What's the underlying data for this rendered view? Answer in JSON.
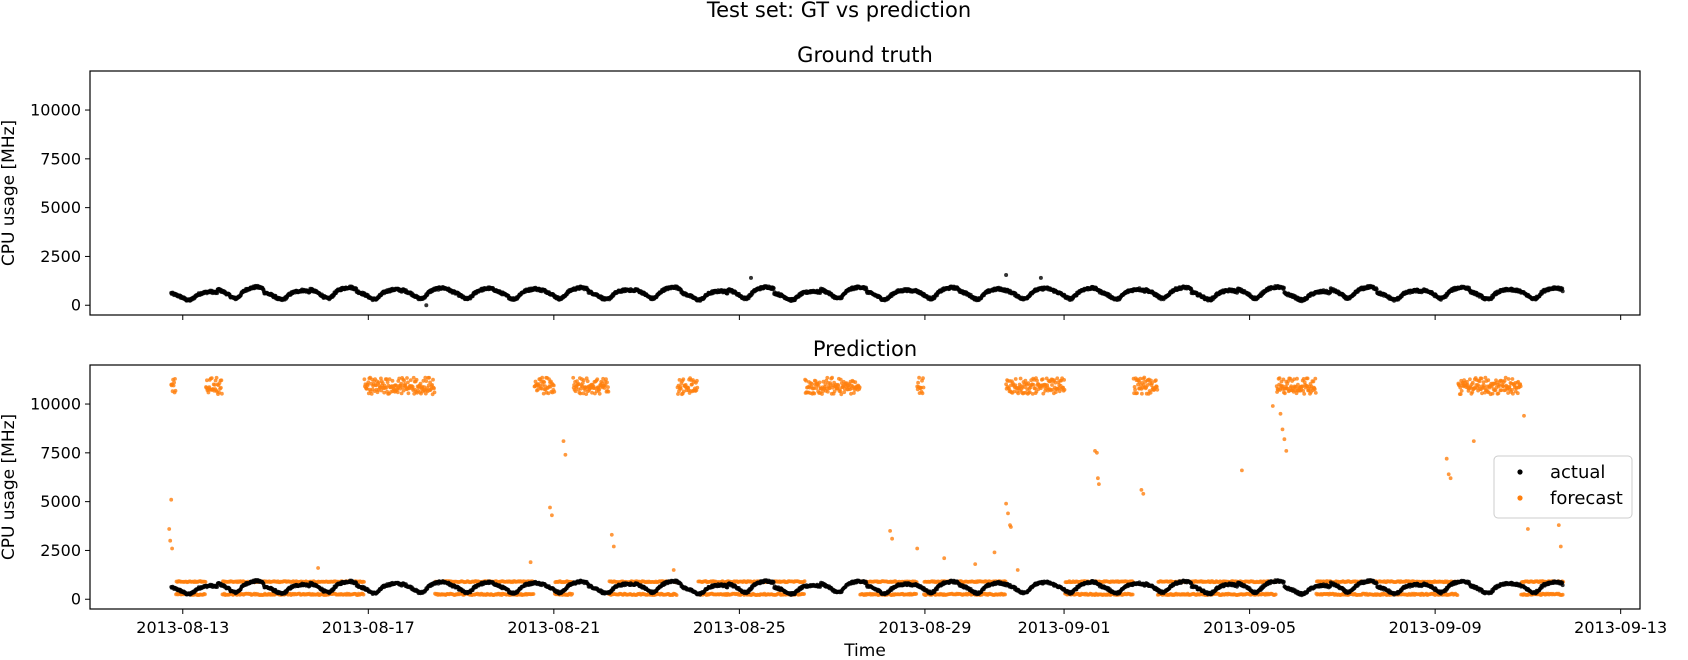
{
  "figure": {
    "suptitle": "Test set: GT vs prediction",
    "xlabel": "Time"
  },
  "chart_data": [
    {
      "type": "scatter",
      "title": "Ground truth",
      "ylabel": "CPU usage [MHz]",
      "xlim": [
        "2013-08-11T00:00",
        "2013-09-13T10:00"
      ],
      "ylim": [
        -500,
        12000
      ],
      "yticks": [
        0,
        2500,
        5000,
        7500,
        10000
      ],
      "xticks": [
        "2013-08-13",
        "2013-08-17",
        "2013-08-21",
        "2013-08-25",
        "2013-08-29",
        "2013-09-01",
        "2013-09-05",
        "2013-09-09",
        "2013-09-13"
      ],
      "series": [
        {
          "name": "actual",
          "color": "#000000",
          "x_start": "2013-08-12T18:00",
          "x_end": "2013-09-11T18:00",
          "step_hours": 0.25,
          "values_description": "daily cycle between ~300 and ~1000 MHz",
          "daily_profile": [
            450,
            380,
            330,
            300,
            320,
            380,
            480,
            580,
            650,
            700,
            740,
            760,
            780,
            800,
            820,
            810,
            790,
            760,
            720,
            680,
            640,
            600,
            560,
            500
          ],
          "outliers": [
            {
              "x": "2013-08-25T06:00",
              "y": 1400
            },
            {
              "x": "2013-08-30T18:00",
              "y": 1550
            },
            {
              "x": "2013-08-31T12:00",
              "y": 1400
            },
            {
              "x": "2013-08-18T06:00",
              "y": 0
            }
          ]
        }
      ]
    },
    {
      "type": "scatter",
      "title": "Prediction",
      "ylabel": "CPU usage [MHz]",
      "xlim": [
        "2013-08-11T00:00",
        "2013-09-13T10:00"
      ],
      "ylim": [
        -500,
        12000
      ],
      "yticks": [
        0,
        2500,
        5000,
        7500,
        10000
      ],
      "xticks": [
        "2013-08-13",
        "2013-08-17",
        "2013-08-21",
        "2013-08-25",
        "2013-08-29",
        "2013-09-01",
        "2013-09-05",
        "2013-09-09",
        "2013-09-13"
      ],
      "legend": {
        "position": "center-right",
        "entries": [
          "actual",
          "forecast"
        ]
      },
      "series": [
        {
          "name": "actual",
          "color": "#000000"
        },
        {
          "name": "forecast",
          "color": "#ff7f0e",
          "low_levels": [
            250,
            900
          ],
          "high_level": 11000,
          "high_segments": [
            [
              "2013-08-12T18:00",
              "2013-08-12T20:00"
            ],
            [
              "2013-08-13T12:00",
              "2013-08-13T20:00"
            ],
            [
              "2013-08-16T22:00",
              "2013-08-18T10:00"
            ],
            [
              "2013-08-20T14:00",
              "2013-08-21T00:00"
            ],
            [
              "2013-08-21T10:00",
              "2013-08-22T04:00"
            ],
            [
              "2013-08-23T16:00",
              "2013-08-24T02:00"
            ],
            [
              "2013-08-26T10:00",
              "2013-08-27T14:00"
            ],
            [
              "2013-08-28T20:00",
              "2013-08-28T23:00"
            ],
            [
              "2013-08-30T18:00",
              "2013-09-01T00:00"
            ],
            [
              "2013-09-02T12:00",
              "2013-09-03T00:00"
            ],
            [
              "2013-09-05T14:00",
              "2013-09-06T10:00"
            ],
            [
              "2013-09-09T12:00",
              "2013-09-10T20:00"
            ]
          ],
          "spikes": [
            {
              "x": "2013-08-12T18:00",
              "y": 5100
            },
            {
              "x": "2013-08-12T17:00",
              "y": 3600
            },
            {
              "x": "2013-08-12T17:30",
              "y": 3000
            },
            {
              "x": "2013-08-12T18:30",
              "y": 2600
            },
            {
              "x": "2013-08-21T05:00",
              "y": 8100
            },
            {
              "x": "2013-08-21T06:00",
              "y": 7400
            },
            {
              "x": "2013-08-20T22:00",
              "y": 4700
            },
            {
              "x": "2013-08-20T23:00",
              "y": 4300
            },
            {
              "x": "2013-08-22T06:00",
              "y": 3300
            },
            {
              "x": "2013-08-22T07:00",
              "y": 2700
            },
            {
              "x": "2013-08-28T06:00",
              "y": 3500
            },
            {
              "x": "2013-08-28T07:00",
              "y": 3100
            },
            {
              "x": "2013-08-28T20:00",
              "y": 2600
            },
            {
              "x": "2013-08-29T10:00",
              "y": 2100
            },
            {
              "x": "2013-08-30T02:00",
              "y": 1800
            },
            {
              "x": "2013-08-30T12:00",
              "y": 2400
            },
            {
              "x": "2013-08-30T18:00",
              "y": 4900
            },
            {
              "x": "2013-08-30T19:00",
              "y": 4400
            },
            {
              "x": "2013-08-30T20:00",
              "y": 3800
            },
            {
              "x": "2013-08-30T20:30",
              "y": 3700
            },
            {
              "x": "2013-08-31T00:00",
              "y": 1500
            },
            {
              "x": "2013-09-01T16:00",
              "y": 7600
            },
            {
              "x": "2013-09-01T17:00",
              "y": 7500
            },
            {
              "x": "2013-09-01T17:30",
              "y": 6200
            },
            {
              "x": "2013-09-01T18:00",
              "y": 5900
            },
            {
              "x": "2013-09-02T16:00",
              "y": 5600
            },
            {
              "x": "2013-09-02T17:00",
              "y": 5400
            },
            {
              "x": "2013-09-04T20:00",
              "y": 6600
            },
            {
              "x": "2013-09-05T16:00",
              "y": 9500
            },
            {
              "x": "2013-09-05T17:00",
              "y": 8700
            },
            {
              "x": "2013-09-05T18:00",
              "y": 8200
            },
            {
              "x": "2013-09-05T19:00",
              "y": 7600
            },
            {
              "x": "2013-09-05T12:00",
              "y": 9900
            },
            {
              "x": "2013-09-09T06:00",
              "y": 7200
            },
            {
              "x": "2013-09-09T07:00",
              "y": 6400
            },
            {
              "x": "2013-09-09T08:00",
              "y": 6200
            },
            {
              "x": "2013-09-09T20:00",
              "y": 8100
            },
            {
              "x": "2013-09-10T22:00",
              "y": 9400
            },
            {
              "x": "2013-09-11T00:00",
              "y": 3600
            },
            {
              "x": "2013-09-11T16:00",
              "y": 3800
            },
            {
              "x": "2013-09-11T17:00",
              "y": 2700
            },
            {
              "x": "2013-08-23T14:00",
              "y": 1500
            },
            {
              "x": "2013-08-15T22:00",
              "y": 1600
            },
            {
              "x": "2013-08-20T12:00",
              "y": 1900
            }
          ]
        }
      ]
    }
  ]
}
